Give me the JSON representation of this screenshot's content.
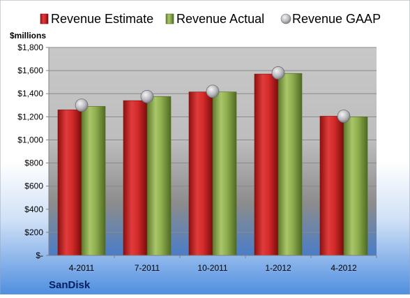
{
  "chart_data": {
    "type": "bar",
    "title": "",
    "unit_label": "$millions",
    "company": "SanDisk",
    "categories": [
      "4-2011",
      "7-2011",
      "10-2011",
      "1-2012",
      "4-2012"
    ],
    "series": [
      {
        "name": "Revenue Estimate",
        "kind": "bar",
        "values": [
          1260,
          1340,
          1415,
          1570,
          1205
        ]
      },
      {
        "name": "Revenue Actual",
        "kind": "bar",
        "values": [
          1290,
          1375,
          1415,
          1575,
          1200
        ]
      },
      {
        "name": "Revenue GAAP",
        "kind": "marker",
        "values": [
          1300,
          1375,
          1420,
          1580,
          1205
        ]
      }
    ],
    "ylim": [
      0,
      1800
    ],
    "yticks": [
      0,
      200,
      400,
      600,
      800,
      1000,
      1200,
      1400,
      1600,
      1800
    ],
    "ytick_labels": [
      "$-",
      "$200",
      "$400",
      "$600",
      "$800",
      "$1,000",
      "$1,200",
      "$1,400",
      "$1,600",
      "$1,800"
    ],
    "grid": true,
    "legend_position": "top",
    "colors": {
      "estimate": "#d42a2a",
      "actual": "#8fae4e",
      "gaap": "#b9b9bd",
      "background_top": "#ffffff",
      "background_bottom": "#4f8ee0",
      "text": "#000000",
      "company": "#002060"
    }
  }
}
